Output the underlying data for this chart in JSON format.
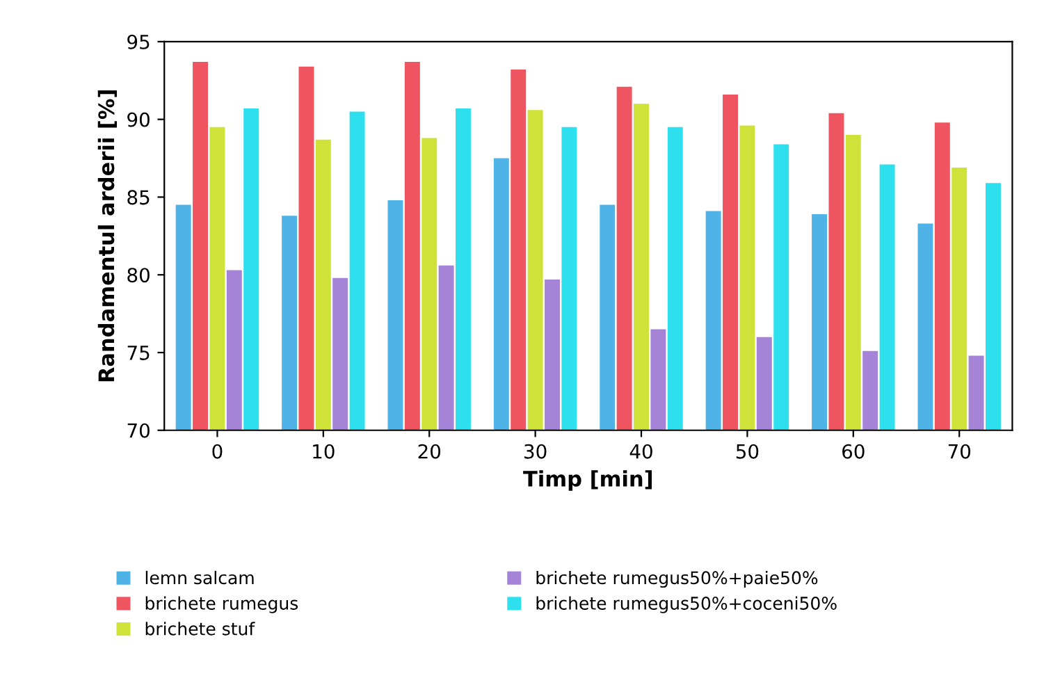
{
  "chart_data": {
    "type": "bar",
    "xlabel": "Timp [min]",
    "ylabel": "Randamentul arderii [%]",
    "categories": [
      "0",
      "10",
      "20",
      "30",
      "40",
      "50",
      "60",
      "70"
    ],
    "series": [
      {
        "name": "lemn salcam",
        "color": "#4fb3e8",
        "values": [
          84.5,
          83.8,
          84.8,
          87.5,
          84.5,
          84.1,
          83.9,
          83.3
        ]
      },
      {
        "name": "brichete rumegus",
        "color": "#ee5560",
        "values": [
          93.7,
          93.4,
          93.7,
          93.2,
          92.1,
          91.6,
          90.4,
          89.8
        ]
      },
      {
        "name": "brichete stuf",
        "color": "#cfe23a",
        "values": [
          89.5,
          88.7,
          88.8,
          90.6,
          91.0,
          89.6,
          89.0,
          86.9
        ]
      },
      {
        "name": "brichete rumegus50%+paie50%",
        "color": "#a583d6",
        "values": [
          80.3,
          79.8,
          80.6,
          79.7,
          76.5,
          76.0,
          75.1,
          74.8
        ]
      },
      {
        "name": "brichete rumegus50%+coceni50%",
        "color": "#2ee0ee",
        "values": [
          90.7,
          90.5,
          90.7,
          89.5,
          89.5,
          88.4,
          87.1,
          85.9
        ]
      }
    ],
    "ylim": [
      70,
      95
    ],
    "yticks": [
      70,
      75,
      80,
      85,
      90,
      95
    ],
    "grid": false,
    "legend": "bottom"
  }
}
